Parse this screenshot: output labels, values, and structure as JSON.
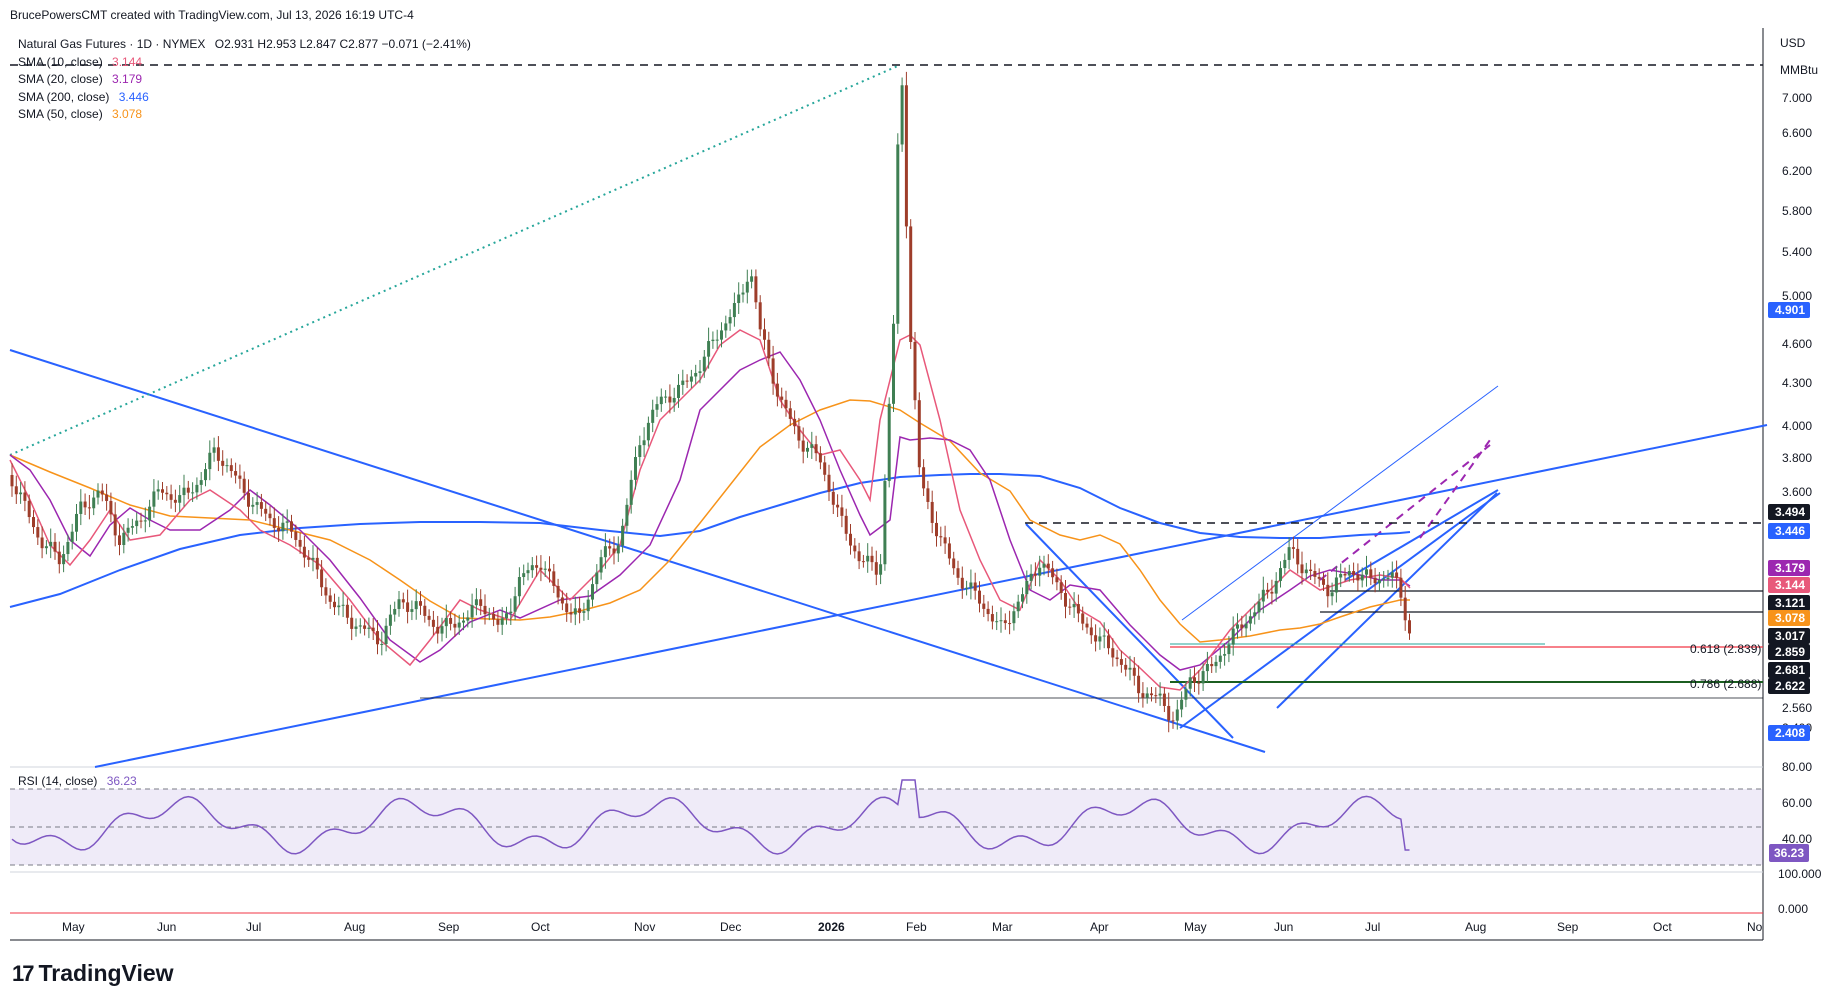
{
  "header": {
    "attribution": "BrucePowersCMT created with TradingView.com, Jul 13, 2026 16:19 UTC-4"
  },
  "legend": {
    "instrument": "Natural Gas Futures · 1D · NYMEX",
    "ohlc": "O2.931  H2.953  L2.847  C2.877  −0.071 (−2.41%)",
    "sma": [
      {
        "label": "SMA (10, close)",
        "value": "3.144",
        "color": "#e8587a"
      },
      {
        "label": "SMA (20, close)",
        "value": "3.179",
        "color": "#9c27b0"
      },
      {
        "label": "SMA (200, close)",
        "value": "3.446",
        "color": "#2962ff"
      },
      {
        "label": "SMA (50, close)",
        "value": "3.078",
        "color": "#f7931a"
      }
    ]
  },
  "price_axis": {
    "currency": "USD",
    "unit": "MMBtu",
    "ticks": [
      "7.000",
      "6.600",
      "6.200",
      "5.800",
      "5.400",
      "5.000",
      "4.600",
      "4.300",
      "4.000",
      "3.800",
      "3.600",
      "2.560",
      "2.400"
    ],
    "badges": [
      {
        "text": "4.901",
        "bg": "#2962ff"
      },
      {
        "text": "3.494",
        "bg": "#131722"
      },
      {
        "text": "3.446",
        "bg": "#2962ff"
      },
      {
        "text": "3.179",
        "bg": "#9c27b0"
      },
      {
        "text": "3.144",
        "bg": "#e8587a"
      },
      {
        "text": "3.121",
        "bg": "#131722"
      },
      {
        "text": "3.078",
        "bg": "#f7931a"
      },
      {
        "text": "3.017",
        "bg": "#131722"
      },
      {
        "text": "2.859",
        "bg": "#131722"
      },
      {
        "text": "2.681",
        "bg": "#131722"
      },
      {
        "text": "2.622",
        "bg": "#131722"
      },
      {
        "text": "2.408",
        "bg": "#2962ff"
      }
    ]
  },
  "fib_labels": [
    {
      "text": "0.618 (2.839)",
      "color": "#f23645"
    },
    {
      "text": "0.786 (2.688)",
      "color": "#388e3c"
    }
  ],
  "rsi": {
    "label": "RSI (14, close)",
    "value": "36.23",
    "axis_ticks": [
      "80.00",
      "60.00",
      "40.00"
    ],
    "color": "#7e57c2"
  },
  "volume_axis": {
    "ticks": [
      "100.000",
      "0.000"
    ]
  },
  "time_axis": {
    "labels": [
      "May",
      "Jun",
      "Jul",
      "Aug",
      "Sep",
      "Oct",
      "Nov",
      "Dec",
      "2026",
      "Feb",
      "Mar",
      "Apr",
      "May",
      "Jun",
      "Jul",
      "Aug",
      "Sep",
      "Oct",
      "No"
    ]
  },
  "brand": {
    "name": "TradingView"
  },
  "chart_data": {
    "type": "candlestick",
    "title": "Natural Gas Futures · 1D · NYMEX",
    "ylabel": "USD / MMBtu",
    "ylim": [
      2.3,
      7.6
    ],
    "series": [
      {
        "name": "SMA (10, close)",
        "last": 3.144
      },
      {
        "name": "SMA (20, close)",
        "last": 3.179
      },
      {
        "name": "SMA (200, close)",
        "last": 3.446
      },
      {
        "name": "SMA (50, close)",
        "last": 3.078
      }
    ],
    "last_bar": {
      "open": 2.931,
      "high": 2.953,
      "low": 2.847,
      "close": 2.877,
      "change": -0.071,
      "change_pct": -2.41
    },
    "rsi14_last": 36.23
  }
}
